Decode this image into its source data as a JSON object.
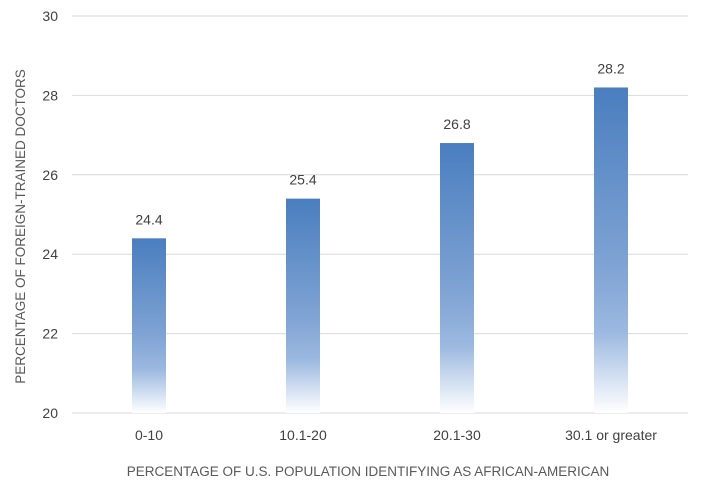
{
  "chart_data": {
    "type": "bar",
    "title": "",
    "xlabel": "PERCENTAGE OF U.S. POPULATION IDENTIFYING AS AFRICAN-AMERICAN",
    "ylabel": "PERCENTAGE OF FOREIGN-TRAINED DOCTORS",
    "categories": [
      "0-10",
      "10.1-20",
      "20.1-30",
      "30.1 or greater"
    ],
    "values": [
      24.4,
      25.4,
      26.8,
      28.2
    ],
    "data_labels": [
      "24.4",
      "25.4",
      "26.8",
      "28.2"
    ],
    "ylim": [
      20,
      30
    ],
    "yticks": [
      20,
      22,
      24,
      26,
      28,
      30
    ],
    "grid": true,
    "legend": "none",
    "bar_color": "#4a7ebf",
    "bar_fill": "vertical gradient fading to white at baseline"
  }
}
